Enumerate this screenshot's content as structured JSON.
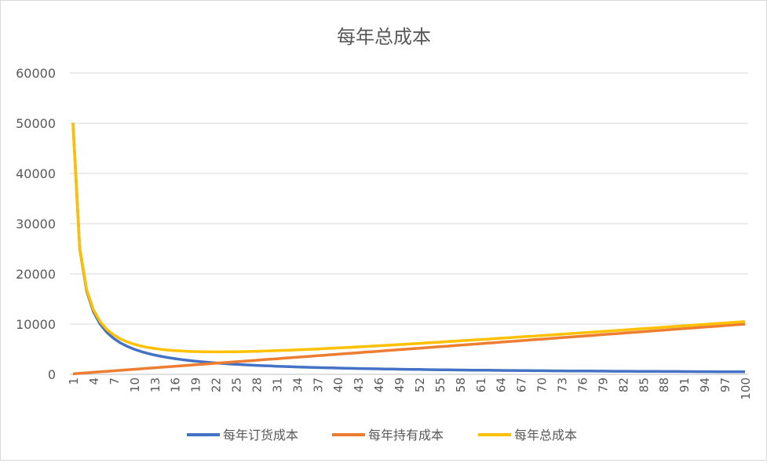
{
  "chart_data": {
    "type": "line",
    "title": "每年总成本",
    "xlabel": "",
    "ylabel": "",
    "ylim": [
      0,
      60000
    ],
    "yticks": [
      0,
      10000,
      20000,
      30000,
      40000,
      50000,
      60000
    ],
    "grid": true,
    "legend_position": "bottom",
    "x": [
      1,
      2,
      3,
      4,
      5,
      6,
      7,
      8,
      9,
      10,
      11,
      12,
      13,
      14,
      15,
      16,
      17,
      18,
      19,
      20,
      21,
      22,
      23,
      24,
      25,
      26,
      27,
      28,
      29,
      30,
      31,
      32,
      33,
      34,
      35,
      36,
      37,
      38,
      39,
      40,
      41,
      42,
      43,
      44,
      45,
      46,
      47,
      48,
      49,
      50,
      51,
      52,
      53,
      54,
      55,
      56,
      57,
      58,
      59,
      60,
      61,
      62,
      63,
      64,
      65,
      66,
      67,
      68,
      69,
      70,
      71,
      72,
      73,
      74,
      75,
      76,
      77,
      78,
      79,
      80,
      81,
      82,
      83,
      84,
      85,
      86,
      87,
      88,
      89,
      90,
      91,
      92,
      93,
      94,
      95,
      96,
      97,
      98,
      99,
      100
    ],
    "xtick_labels": [
      "1",
      "4",
      "7",
      "10",
      "13",
      "16",
      "19",
      "22",
      "25",
      "28",
      "31",
      "34",
      "37",
      "40",
      "43",
      "46",
      "49",
      "52",
      "55",
      "58",
      "61",
      "64",
      "67",
      "70",
      "73",
      "76",
      "79",
      "82",
      "85",
      "88",
      "91",
      "94",
      "97",
      "100"
    ],
    "series": [
      {
        "name": "每年订货成本",
        "color": "#4472C4",
        "values": [
          50000,
          25000,
          16667,
          12500,
          10000,
          8333,
          7143,
          6250,
          5556,
          5000,
          4545,
          4167,
          3846,
          3571,
          3333,
          3125,
          2941,
          2778,
          2632,
          2500,
          2381,
          2273,
          2174,
          2083,
          2000,
          1923,
          1852,
          1786,
          1724,
          1667,
          1613,
          1563,
          1515,
          1471,
          1429,
          1389,
          1351,
          1316,
          1282,
          1250,
          1220,
          1190,
          1163,
          1136,
          1111,
          1087,
          1064,
          1042,
          1020,
          1000,
          980,
          962,
          943,
          926,
          909,
          893,
          877,
          862,
          847,
          833,
          820,
          806,
          794,
          781,
          769,
          758,
          746,
          735,
          725,
          714,
          704,
          694,
          685,
          676,
          667,
          658,
          649,
          641,
          633,
          625,
          617,
          610,
          602,
          595,
          588,
          581,
          575,
          568,
          562,
          556,
          549,
          543,
          538,
          532,
          526,
          521,
          515,
          510,
          505,
          500
        ]
      },
      {
        "name": "每年持有成本",
        "color": "#ED7D31",
        "values": [
          100,
          200,
          300,
          400,
          500,
          600,
          700,
          800,
          900,
          1000,
          1100,
          1200,
          1300,
          1400,
          1500,
          1600,
          1700,
          1800,
          1900,
          2000,
          2100,
          2200,
          2300,
          2400,
          2500,
          2600,
          2700,
          2800,
          2900,
          3000,
          3100,
          3200,
          3300,
          3400,
          3500,
          3600,
          3700,
          3800,
          3900,
          4000,
          4100,
          4200,
          4300,
          4400,
          4500,
          4600,
          4700,
          4800,
          4900,
          5000,
          5100,
          5200,
          5300,
          5400,
          5500,
          5600,
          5700,
          5800,
          5900,
          6000,
          6100,
          6200,
          6300,
          6400,
          6500,
          6600,
          6700,
          6800,
          6900,
          7000,
          7100,
          7200,
          7300,
          7400,
          7500,
          7600,
          7700,
          7800,
          7900,
          8000,
          8100,
          8200,
          8300,
          8400,
          8500,
          8600,
          8700,
          8800,
          8900,
          9000,
          9100,
          9200,
          9300,
          9400,
          9500,
          9600,
          9700,
          9800,
          9900,
          10000
        ]
      },
      {
        "name": "每年总成本",
        "color": "#FFC000",
        "values": [
          50100,
          25200,
          16967,
          12900,
          10500,
          8933,
          7843,
          7050,
          6456,
          6000,
          5645,
          5367,
          5146,
          4971,
          4833,
          4725,
          4641,
          4578,
          4532,
          4500,
          4481,
          4473,
          4474,
          4483,
          4500,
          4523,
          4552,
          4586,
          4624,
          4667,
          4713,
          4763,
          4815,
          4871,
          4929,
          4989,
          5051,
          5116,
          5182,
          5250,
          5320,
          5390,
          5463,
          5536,
          5611,
          5687,
          5764,
          5842,
          5920,
          6000,
          6080,
          6162,
          6243,
          6326,
          6409,
          6493,
          6577,
          6662,
          6747,
          6833,
          6920,
          7006,
          7094,
          7181,
          7269,
          7358,
          7446,
          7535,
          7625,
          7714,
          7804,
          7894,
          7985,
          8076,
          8167,
          8258,
          8349,
          8441,
          8533,
          8625,
          8717,
          8810,
          8902,
          8995,
          9088,
          9181,
          9275,
          9368,
          9462,
          9556,
          9649,
          9743,
          9838,
          9932,
          10026,
          10121,
          10215,
          10310,
          10405,
          10500
        ]
      }
    ]
  }
}
